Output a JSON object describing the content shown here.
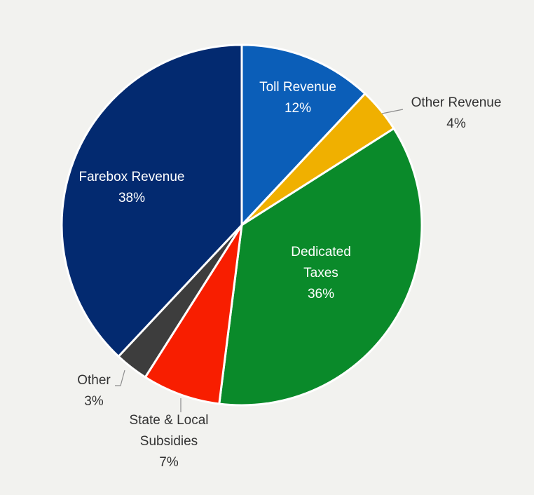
{
  "chart_data": {
    "type": "pie",
    "title": "",
    "slices": [
      {
        "label_lines": [
          "Toll Revenue"
        ],
        "value": 12,
        "value_label": "12%",
        "color": "#0b5eb8",
        "label_position": "inside"
      },
      {
        "label_lines": [
          "Other Revenue"
        ],
        "value": 4,
        "value_label": "4%",
        "color": "#f0b000",
        "label_position": "outside"
      },
      {
        "label_lines": [
          "Dedicated",
          "Taxes"
        ],
        "value": 36,
        "value_label": "36%",
        "color": "#0a8a2a",
        "label_position": "inside"
      },
      {
        "label_lines": [
          "State & Local",
          "Subsidies"
        ],
        "value": 7,
        "value_label": "7%",
        "color": "#f81e00",
        "label_position": "outside"
      },
      {
        "label_lines": [
          "Other"
        ],
        "value": 3,
        "value_label": "3%",
        "color": "#3d3d3d",
        "label_position": "outside"
      },
      {
        "label_lines": [
          "Farebox Revenue"
        ],
        "value": 38,
        "value_label": "38%",
        "color": "#032a70",
        "label_position": "inside"
      }
    ],
    "start_angle": "12 o'clock",
    "direction": "clockwise",
    "legend": "none"
  }
}
